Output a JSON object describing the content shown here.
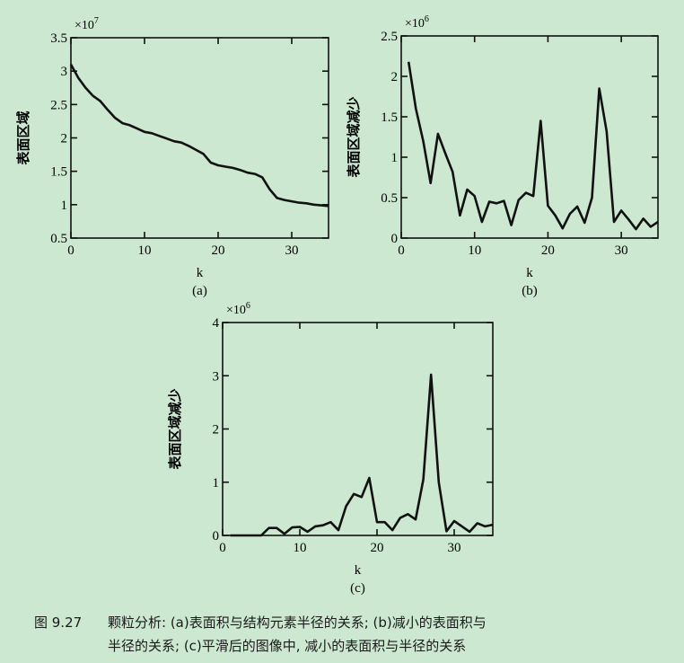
{
  "chart_data": [
    {
      "id": "a",
      "type": "line",
      "panel_label": "(a)",
      "title": "",
      "xlabel": "k",
      "ylabel": "表面区域",
      "scale_label": "×10^7",
      "scale_base": "×10",
      "scale_exp": "7",
      "xlim": [
        0,
        35
      ],
      "ylim": [
        0.5,
        3.5
      ],
      "xticks": [
        0,
        10,
        20,
        30
      ],
      "yticks": [
        0.5,
        1,
        1.5,
        2,
        2.5,
        3,
        3.5
      ],
      "ytick_labels": [
        "0.5",
        "1",
        "1.5",
        "2",
        "2.5",
        "3",
        "3.5"
      ],
      "grid": false,
      "x": [
        0,
        1,
        2,
        3,
        4,
        5,
        6,
        7,
        8,
        9,
        10,
        11,
        12,
        13,
        14,
        15,
        16,
        17,
        18,
        19,
        20,
        21,
        22,
        23,
        24,
        25,
        26,
        27,
        28,
        29,
        30,
        31,
        32,
        33,
        34,
        35
      ],
      "values": [
        3.1,
        2.9,
        2.75,
        2.63,
        2.55,
        2.42,
        2.3,
        2.22,
        2.19,
        2.14,
        2.09,
        2.07,
        2.03,
        1.99,
        1.95,
        1.93,
        1.88,
        1.82,
        1.76,
        1.63,
        1.59,
        1.57,
        1.55,
        1.52,
        1.48,
        1.46,
        1.41,
        1.23,
        1.1,
        1.07,
        1.05,
        1.03,
        1.02,
        1.0,
        0.99,
        0.98
      ]
    },
    {
      "id": "b",
      "type": "line",
      "panel_label": "(b)",
      "title": "",
      "xlabel": "k",
      "ylabel": "表面区域减少",
      "scale_label": "×10^6",
      "scale_base": "×10",
      "scale_exp": "6",
      "xlim": [
        0,
        35
      ],
      "ylim": [
        0,
        2.5
      ],
      "xticks": [
        0,
        10,
        20,
        30
      ],
      "yticks": [
        0,
        0.5,
        1,
        1.5,
        2,
        2.5
      ],
      "ytick_labels": [
        "0",
        "0.5",
        "1",
        "1.5",
        "2",
        "2.5"
      ],
      "grid": false,
      "x": [
        1,
        2,
        3,
        4,
        5,
        6,
        7,
        8,
        9,
        10,
        11,
        12,
        13,
        14,
        15,
        16,
        17,
        18,
        19,
        20,
        21,
        22,
        23,
        24,
        25,
        26,
        27,
        28,
        29,
        30,
        31,
        32,
        33,
        34,
        35
      ],
      "values": [
        2.18,
        1.6,
        1.2,
        0.68,
        1.29,
        1.05,
        0.82,
        0.28,
        0.6,
        0.52,
        0.2,
        0.45,
        0.43,
        0.46,
        0.16,
        0.47,
        0.56,
        0.52,
        1.45,
        0.4,
        0.28,
        0.12,
        0.3,
        0.39,
        0.19,
        0.5,
        1.85,
        1.32,
        0.2,
        0.34,
        0.23,
        0.11,
        0.24,
        0.14,
        0.2
      ]
    },
    {
      "id": "c",
      "type": "line",
      "panel_label": "(c)",
      "title": "",
      "xlabel": "k",
      "ylabel": "表面区域减少",
      "scale_label": "×10^6",
      "scale_base": "×10",
      "scale_exp": "6",
      "xlim": [
        0,
        35
      ],
      "ylim": [
        0,
        4
      ],
      "xticks": [
        0,
        10,
        20,
        30
      ],
      "yticks": [
        0,
        1,
        2,
        3,
        4
      ],
      "ytick_labels": [
        "0",
        "1",
        "2",
        "3",
        "4"
      ],
      "grid": false,
      "x": [
        1,
        2,
        3,
        4,
        5,
        6,
        7,
        8,
        9,
        10,
        11,
        12,
        13,
        14,
        15,
        16,
        17,
        18,
        19,
        20,
        21,
        22,
        23,
        24,
        25,
        26,
        27,
        28,
        29,
        30,
        31,
        32,
        33,
        34,
        35
      ],
      "values": [
        0.0,
        0.0,
        0.0,
        0.0,
        0.0,
        0.14,
        0.14,
        0.03,
        0.15,
        0.16,
        0.07,
        0.17,
        0.19,
        0.25,
        0.1,
        0.55,
        0.78,
        0.72,
        1.08,
        0.25,
        0.25,
        0.1,
        0.33,
        0.4,
        0.3,
        1.05,
        3.02,
        1.0,
        0.08,
        0.27,
        0.17,
        0.07,
        0.23,
        0.17,
        0.2
      ]
    }
  ],
  "panels": {
    "a": {
      "xlabel": "k",
      "label": "(a)",
      "ylabel": "表面区域",
      "scale_base": "×10",
      "scale_exp": "7"
    },
    "b": {
      "xlabel": "k",
      "label": "(b)",
      "ylabel": "表面区域减少",
      "scale_base": "×10",
      "scale_exp": "6"
    },
    "c": {
      "xlabel": "k",
      "label": "(c)",
      "ylabel": "表面区域减少",
      "scale_base": "×10",
      "scale_exp": "6"
    }
  },
  "caption": {
    "figure_number": "图 9.27",
    "line1": "颗粒分析: (a)表面积与结构元素半径的关系; (b)减小的表面积与",
    "line2": "半径的关系; (c)平滑后的图像中, 减小的表面积与半径的关系"
  },
  "colors": {
    "background": "#cce8d0",
    "line": "#111111",
    "axes": "#111111"
  }
}
